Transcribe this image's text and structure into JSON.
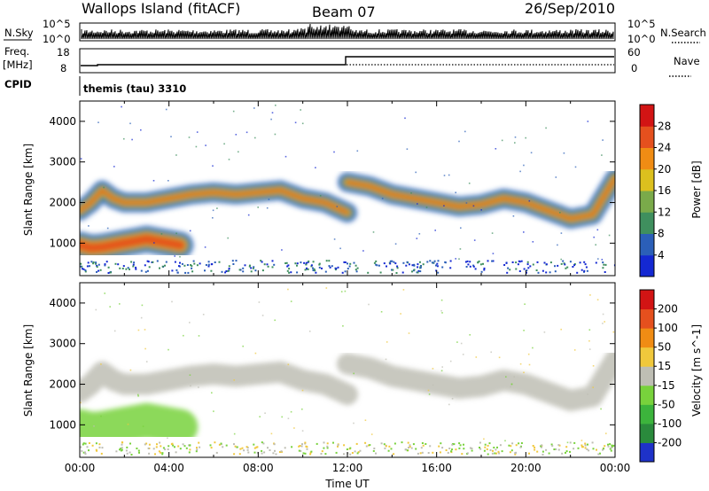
{
  "header": {
    "station": "Wallops Island (fitACF)",
    "beam": "Beam 07",
    "date": "26/Sep/2010"
  },
  "strips": {
    "nsky_label": "N.Sky",
    "nsky_ticks": [
      "10^5",
      "10^0"
    ],
    "nsearch_label": "N.Search",
    "nsearch_ticks": [
      "10^5",
      "10^0"
    ],
    "freq_label_1": "Freq.",
    "freq_label_2": "[MHz]",
    "freq_ticks": [
      "18",
      "8"
    ],
    "nave_label": "Nave",
    "nave_ticks": [
      "60",
      "0"
    ],
    "cpid_label": "CPID",
    "cpid_value": "themis (tau) 3310"
  },
  "colors": {
    "power_scale": [
      "#1428d2",
      "#2b5fb8",
      "#3f8f5e",
      "#7aaa4a",
      "#dcc01e",
      "#f08c14",
      "#e5501e",
      "#d21414"
    ],
    "velocity_scale": [
      "#1e32c8",
      "#2a8a3c",
      "#3cb43c",
      "#78d23c",
      "#bebeb4",
      "#f0c83c",
      "#f08c14",
      "#e5501e",
      "#d21414"
    ]
  },
  "chart_data": [
    {
      "type": "heatmap",
      "title": "Power",
      "ylabel": "Slant Range [km]",
      "xlabel": "Time UT",
      "x_ticks": [
        "00:00",
        "04:00",
        "08:00",
        "12:00",
        "16:00",
        "20:00",
        "00:00"
      ],
      "y_ticks": [
        1000,
        2000,
        3000,
        4000
      ],
      "ylim": [
        200,
        4500
      ],
      "colorbar_label": "Power [dB]",
      "colorbar_ticks": [
        4,
        8,
        12,
        16,
        20,
        24,
        28
      ],
      "echo_bands": [
        {
          "x_hours": [
            0.0,
            0.5,
            1.0,
            1.5,
            2.0,
            2.5,
            3.0,
            3.5,
            4.0,
            4.5
          ],
          "y_km": [
            950,
            880,
            900,
            950,
            1000,
            1050,
            1100,
            1050,
            1000,
            950
          ]
        },
        {
          "x_hours": [
            0.0,
            0.5,
            1.0,
            1.5,
            2.0,
            3.0,
            4.0,
            5.0,
            6.0,
            7.0,
            8.0,
            9.0,
            10.0,
            11.0,
            12.0
          ],
          "y_km": [
            1800,
            2000,
            2300,
            2100,
            2000,
            2000,
            2100,
            2200,
            2250,
            2200,
            2250,
            2300,
            2100,
            2000,
            1750
          ]
        },
        {
          "x_hours": [
            12.0,
            13.0,
            14.0,
            15.0,
            16.0,
            17.0,
            18.0,
            19.0,
            20.0,
            21.0,
            22.0,
            23.0,
            24.0
          ],
          "y_km": [
            2500,
            2400,
            2200,
            2100,
            2000,
            1900,
            1950,
            2100,
            2000,
            1800,
            1600,
            1700,
            2600
          ]
        }
      ]
    },
    {
      "type": "heatmap",
      "title": "Velocity",
      "ylabel": "Slant Range [km]",
      "xlabel": "Time UT",
      "x_ticks": [
        "00:00",
        "04:00",
        "08:00",
        "12:00",
        "16:00",
        "20:00",
        "00:00"
      ],
      "y_ticks": [
        1000,
        2000,
        3000,
        4000
      ],
      "ylim": [
        200,
        4500
      ],
      "colorbar_label": "Velocity [m s^-1]",
      "colorbar_ticks": [
        200,
        100,
        50,
        15,
        -15,
        -50,
        -100,
        -200
      ]
    }
  ]
}
